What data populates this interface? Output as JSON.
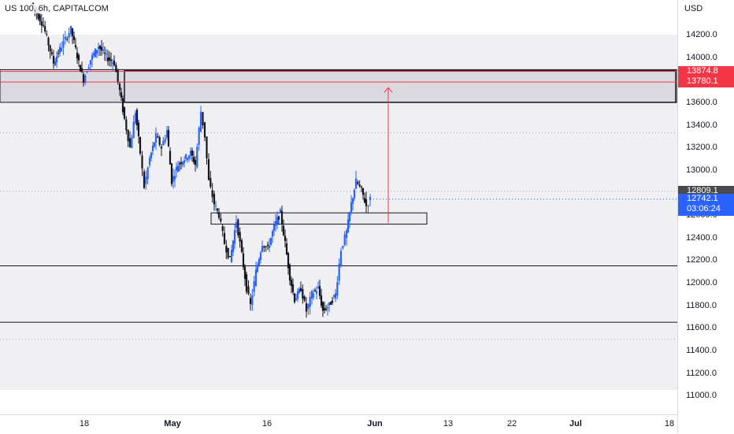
{
  "header": {
    "title": "US 100, 6h, CAPITALCOM"
  },
  "price_scale": {
    "currency": "USD",
    "ticks": [
      "14200.0",
      "14000.0",
      "13800.0",
      "13600.0",
      "13400.0",
      "13200.0",
      "13000.0",
      "12800.0",
      "12600.0",
      "12400.0",
      "12200.0",
      "12000.0",
      "11800.0",
      "11600.0",
      "11400.0",
      "11200.0",
      "11000.0"
    ],
    "tags": {
      "high": "13874.8",
      "low": "13780.1",
      "prev_close": "12809.1",
      "last": "12742.1",
      "countdown": "03:06:24"
    }
  },
  "time_scale": {
    "labels": [
      {
        "text": "18",
        "bold": false
      },
      {
        "text": "May",
        "bold": true
      },
      {
        "text": "16",
        "bold": false
      },
      {
        "text": "Jun",
        "bold": true
      },
      {
        "text": "13",
        "bold": false
      },
      {
        "text": "22",
        "bold": false
      },
      {
        "text": "Jul",
        "bold": true
      },
      {
        "text": "18",
        "bold": false
      }
    ]
  },
  "colors": {
    "up": "#2962ff",
    "down": "#131722",
    "zone_fill": "#ebebef",
    "projection": "#f23645",
    "tag_red": "#f23645",
    "tag_dark": "#4a4a4e",
    "tag_blue": "#2962ff"
  },
  "drawings": {
    "resistance_zone": [
      13600,
      13890
    ],
    "support_box": [
      12520,
      12620
    ],
    "horizontal_lines": [
      12150,
      11650
    ],
    "dotted_levels": [
      13330,
      12810,
      11500
    ],
    "projection_arrow": {
      "from": 12530,
      "to": 13730
    },
    "red_lines": [
      13874.8,
      13780.1
    ]
  },
  "chart_data": {
    "type": "candlestick",
    "symbol": "US 100",
    "interval": "6h",
    "ylim": [
      10950,
      14400
    ],
    "anchors": [
      {
        "x": 40,
        "p": 14480
      },
      {
        "x": 55,
        "p": 14280
      },
      {
        "x": 68,
        "p": 13950
      },
      {
        "x": 78,
        "p": 14100
      },
      {
        "x": 90,
        "p": 14250
      },
      {
        "x": 100,
        "p": 13950
      },
      {
        "x": 106,
        "p": 13800
      },
      {
        "x": 115,
        "p": 13980
      },
      {
        "x": 125,
        "p": 14100
      },
      {
        "x": 135,
        "p": 14000
      },
      {
        "x": 145,
        "p": 13950
      },
      {
        "x": 152,
        "p": 13700
      },
      {
        "x": 158,
        "p": 13450
      },
      {
        "x": 165,
        "p": 13200
      },
      {
        "x": 172,
        "p": 13520
      },
      {
        "x": 178,
        "p": 13150
      },
      {
        "x": 183,
        "p": 12850
      },
      {
        "x": 190,
        "p": 13100
      },
      {
        "x": 198,
        "p": 13300
      },
      {
        "x": 205,
        "p": 13200
      },
      {
        "x": 212,
        "p": 13350
      },
      {
        "x": 218,
        "p": 12900
      },
      {
        "x": 226,
        "p": 13050
      },
      {
        "x": 234,
        "p": 13100
      },
      {
        "x": 242,
        "p": 13150
      },
      {
        "x": 248,
        "p": 13050
      },
      {
        "x": 255,
        "p": 13520
      },
      {
        "x": 260,
        "p": 13300
      },
      {
        "x": 265,
        "p": 12900
      },
      {
        "x": 272,
        "p": 12700
      },
      {
        "x": 278,
        "p": 12600
      },
      {
        "x": 285,
        "p": 12350
      },
      {
        "x": 292,
        "p": 12200
      },
      {
        "x": 300,
        "p": 12550
      },
      {
        "x": 307,
        "p": 12250
      },
      {
        "x": 313,
        "p": 11950
      },
      {
        "x": 318,
        "p": 11800
      },
      {
        "x": 325,
        "p": 12100
      },
      {
        "x": 333,
        "p": 12350
      },
      {
        "x": 340,
        "p": 12300
      },
      {
        "x": 348,
        "p": 12500
      },
      {
        "x": 356,
        "p": 12620
      },
      {
        "x": 362,
        "p": 12350
      },
      {
        "x": 368,
        "p": 12050
      },
      {
        "x": 374,
        "p": 11850
      },
      {
        "x": 382,
        "p": 11950
      },
      {
        "x": 389,
        "p": 11750
      },
      {
        "x": 396,
        "p": 11900
      },
      {
        "x": 404,
        "p": 11950
      },
      {
        "x": 410,
        "p": 11750
      },
      {
        "x": 418,
        "p": 11800
      },
      {
        "x": 426,
        "p": 11900
      },
      {
        "x": 433,
        "p": 12300
      },
      {
        "x": 440,
        "p": 12450
      },
      {
        "x": 446,
        "p": 12700
      },
      {
        "x": 452,
        "p": 12900
      },
      {
        "x": 459,
        "p": 12820
      },
      {
        "x": 465,
        "p": 12680
      },
      {
        "x": 470,
        "p": 12742
      }
    ]
  }
}
